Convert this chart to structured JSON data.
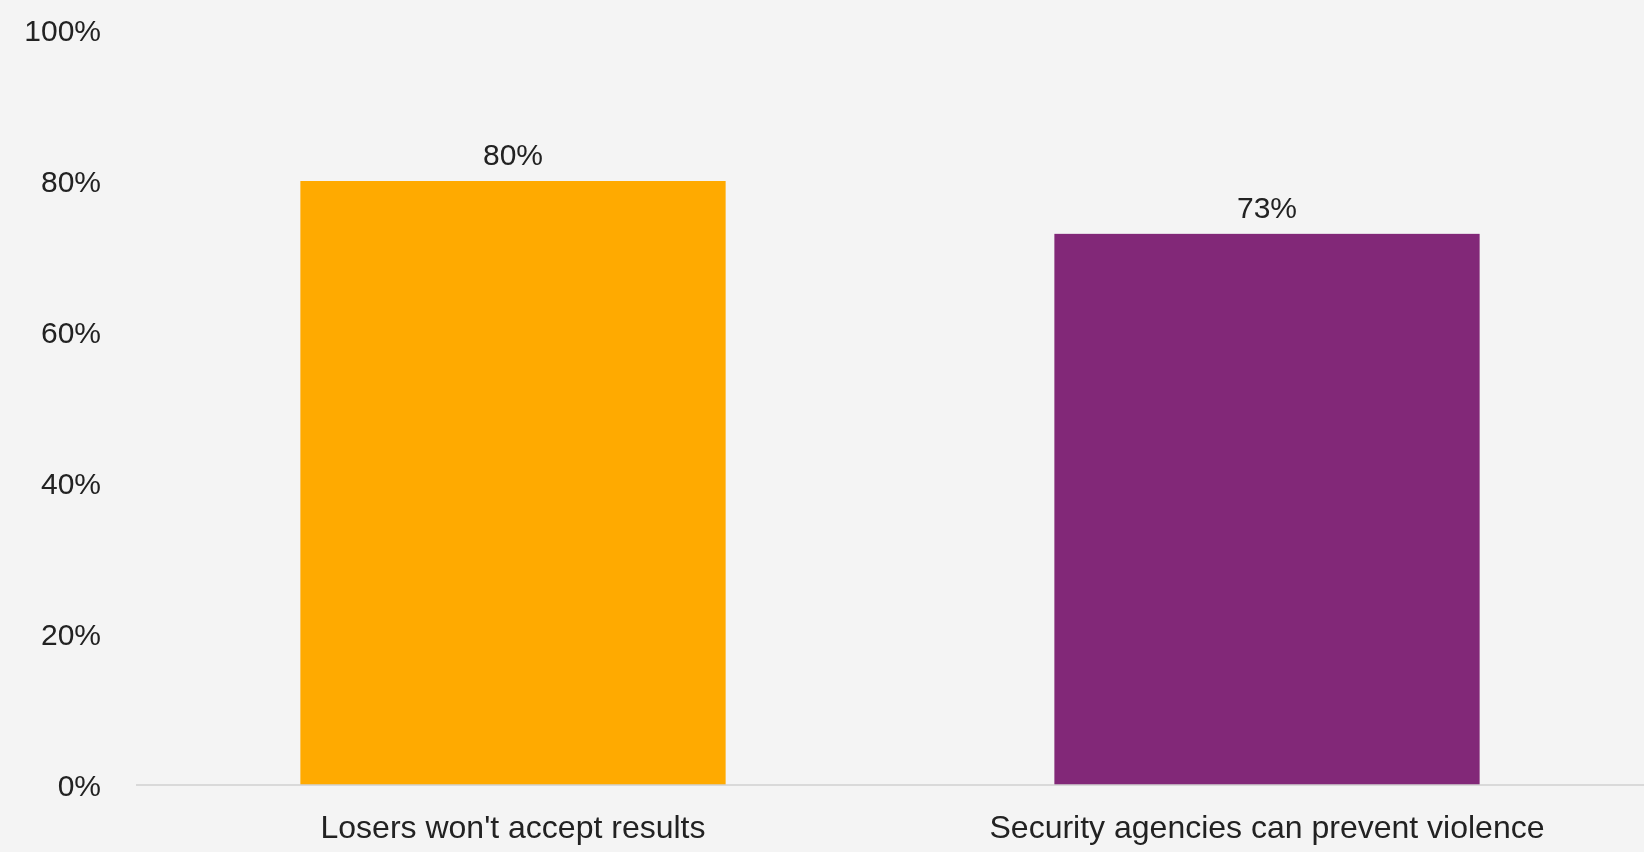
{
  "chart_data": {
    "type": "bar",
    "categories": [
      "Losers won't accept results",
      "Security agencies can prevent violence"
    ],
    "values": [
      80,
      73
    ],
    "colors": [
      "#ffaa00",
      "#822878"
    ],
    "value_labels": [
      "80%",
      "73%"
    ],
    "ylim": [
      0,
      100
    ],
    "yticks": [
      {
        "value": 0,
        "label": "0%"
      },
      {
        "value": 20,
        "label": "20%"
      },
      {
        "value": 40,
        "label": "40%"
      },
      {
        "value": 60,
        "label": "60%"
      },
      {
        "value": 80,
        "label": "80%"
      },
      {
        "value": 100,
        "label": "100%"
      }
    ],
    "grid": false
  }
}
